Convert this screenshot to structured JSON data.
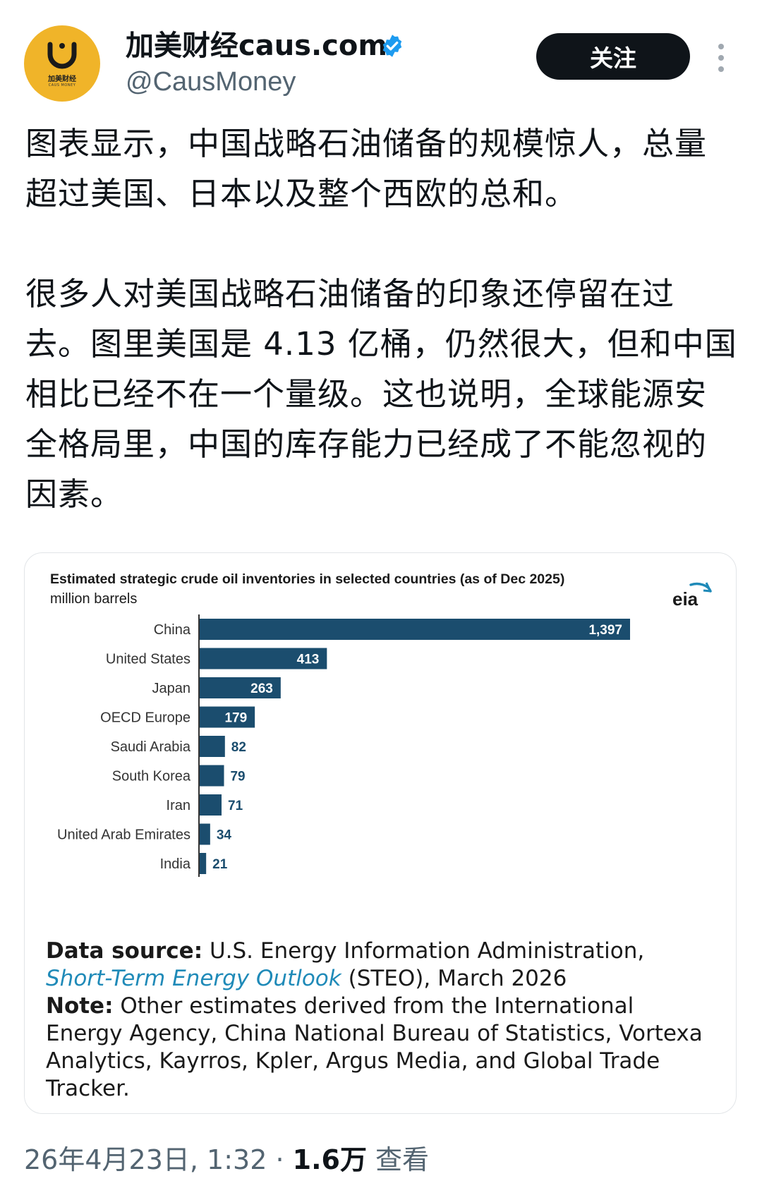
{
  "author": {
    "display_name": "加美财经caus.com",
    "handle": "@CausMoney",
    "avatar_text": "加美财经",
    "avatar_sub": "CAUS MONEY",
    "verified_icon": "verified-badge-icon"
  },
  "follow_button": "关注",
  "post": {
    "paragraph1": "图表显示，中国战略石油储备的规模惊人，总量超过美国、日本以及整个西欧的总和。",
    "paragraph2": "很多人对美国战略石油储备的印象还停留在过去。图里美国是 4.13 亿桶，仍然很大，但和中国相比已经不在一个量级。这也说明，全球能源安全格局里，中国的库存能力已经成了不能忽视的因素。"
  },
  "chart_card": {
    "logo_text": "eia",
    "source_label": "Data source:",
    "source_text": "U.S. Energy Information Administration,",
    "source_link": "Short-Term Energy Outlook",
    "source_tail": "(STEO), March 2026",
    "note_label": "Note:",
    "note_text": "Other estimates derived from the International Energy Agency, China National Bureau of Statistics, Vortexa Analytics, Kayrros, Kpler, Argus Media, and Global Trade Tracker."
  },
  "chart_data": {
    "type": "bar",
    "orientation": "horizontal",
    "title": "Estimated strategic crude oil inventories in selected countries (as of Dec 2025)",
    "subtitle": "million barrels",
    "categories": [
      "China",
      "United States",
      "Japan",
      "OECD Europe",
      "Saudi Arabia",
      "South Korea",
      "Iran",
      "United Arab Emirates",
      "India"
    ],
    "values": [
      1397,
      413,
      263,
      179,
      82,
      79,
      71,
      34,
      21
    ],
    "value_labels": [
      "1,397",
      "413",
      "263",
      "179",
      "82",
      "79",
      "71",
      "34",
      "21"
    ],
    "bar_color": "#1b4d6e",
    "xlim": [
      0,
      1397
    ],
    "grid": false,
    "legend": "none"
  },
  "meta": {
    "timestamp": "26年4月23日, 1:32 · ",
    "views": "1.6万",
    "views_label": " 查看"
  }
}
